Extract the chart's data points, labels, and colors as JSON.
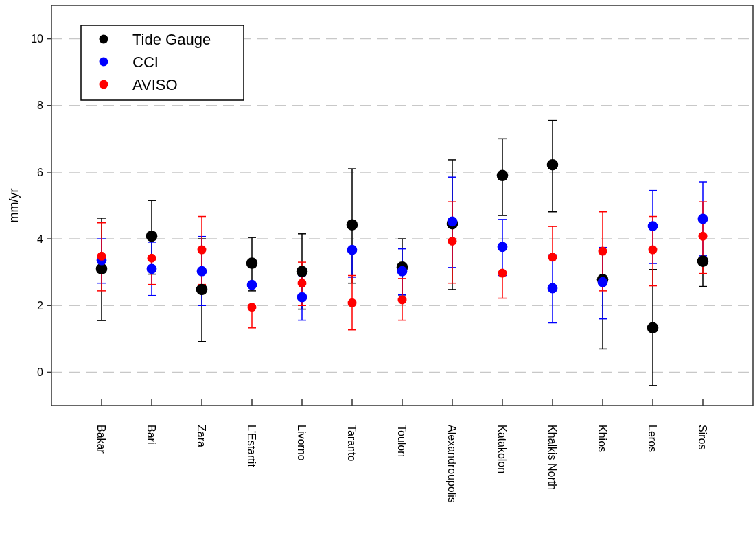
{
  "chart_data": {
    "type": "scatter",
    "ylabel": "mm/yr",
    "categories": [
      "Bakar",
      "Bari",
      "Zara",
      "L'Estartit",
      "Livorno",
      "Taranto",
      "Toulon",
      "Alexandroupolis",
      "Katakolon",
      "Khalkis North",
      "Khios",
      "Leros",
      "Siros"
    ],
    "ylim": [
      -1,
      11
    ],
    "yticks": [
      0,
      2,
      4,
      6,
      8,
      10
    ],
    "grid": "y",
    "legend": "top left",
    "marker": "circle",
    "series": [
      {
        "name": "Tide Gauge",
        "color": "#000000",
        "values": [
          3.1,
          4.08,
          2.48,
          3.27,
          3.02,
          4.42,
          3.15,
          4.45,
          5.9,
          6.22,
          2.78,
          1.33,
          3.33
        ],
        "errors": [
          [
            1.55,
            4.62
          ],
          [
            2.94,
            5.15
          ],
          [
            0.92,
            4.0
          ],
          [
            2.44,
            4.04
          ],
          [
            1.89,
            4.15
          ],
          [
            2.67,
            6.1
          ],
          [
            2.32,
            4.0
          ],
          [
            2.48,
            6.37
          ],
          [
            4.7,
            7.0
          ],
          [
            4.81,
            7.55
          ],
          [
            0.7,
            3.74
          ],
          [
            -0.4,
            3.08
          ],
          [
            2.57,
            3.33
          ]
        ]
      },
      {
        "name": "CCI",
        "color": "#0000ff",
        "values": [
          3.36,
          3.1,
          3.03,
          2.62,
          2.25,
          3.67,
          3.03,
          4.52,
          3.76,
          2.52,
          2.7,
          4.38,
          4.6
        ],
        "errors": [
          [
            2.67,
            4.0
          ],
          [
            2.3,
            3.9
          ],
          [
            2.0,
            4.07
          ],
          null,
          [
            1.56,
            2.9
          ],
          [
            2.85,
            3.67
          ],
          [
            2.32,
            3.7
          ],
          [
            3.14,
            5.85
          ],
          [
            2.9,
            4.58
          ],
          [
            1.48,
            3.52
          ],
          [
            1.6,
            3.74
          ],
          [
            3.26,
            5.45
          ],
          [
            3.49,
            5.71
          ]
        ]
      },
      {
        "name": "AVISO",
        "color": "#ff0000",
        "values": [
          3.48,
          3.42,
          3.67,
          1.95,
          2.67,
          2.08,
          2.17,
          3.93,
          2.97,
          3.45,
          3.63,
          3.67,
          4.08
        ],
        "errors": [
          [
            2.44,
            4.48
          ],
          [
            2.63,
            3.42
          ],
          [
            2.63,
            4.67
          ],
          [
            1.33,
            1.95
          ],
          [
            2.0,
            3.3
          ],
          [
            1.27,
            2.9
          ],
          [
            1.56,
            2.81
          ],
          [
            2.67,
            5.11
          ],
          [
            2.22,
            2.97
          ],
          [
            3.45,
            4.37
          ],
          [
            2.44,
            4.81
          ],
          [
            2.59,
            4.67
          ],
          [
            2.96,
            5.11
          ]
        ]
      }
    ]
  }
}
